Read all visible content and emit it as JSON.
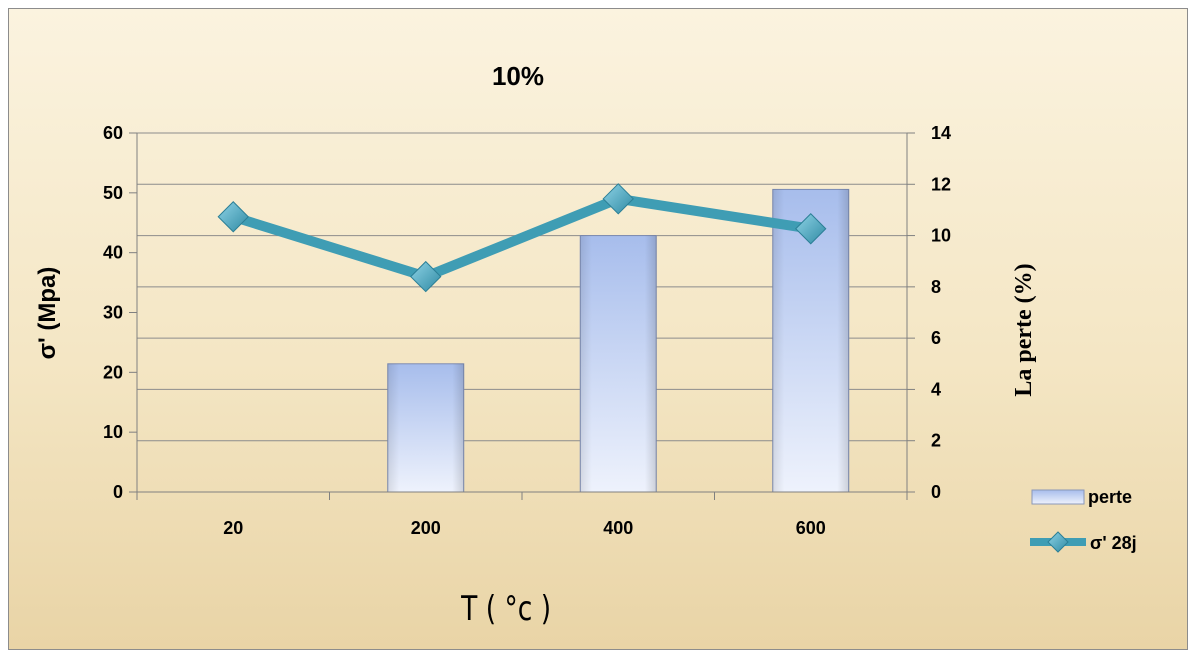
{
  "chart_data": {
    "type": "bar+line",
    "title": "10%",
    "xlabel": "T ( °c )",
    "ylabel": "σ' (Mpa)",
    "y2label": "La perte  (%)",
    "categories": [
      "20",
      "200",
      "400",
      "600"
    ],
    "ylim": [
      0,
      60
    ],
    "yticks": [
      "0",
      "10",
      "20",
      "30",
      "40",
      "50",
      "60"
    ],
    "y2lim": [
      0,
      14
    ],
    "y2ticks": [
      "0",
      "2",
      "4",
      "6",
      "8",
      "10",
      "12",
      "14"
    ],
    "grid": true,
    "legend_position": "right",
    "series": [
      {
        "name": "perte",
        "type": "bar",
        "axis": "right",
        "values": [
          0,
          5,
          10,
          11.8
        ],
        "color": "#aec3ee"
      },
      {
        "name": "σ' 28j",
        "type": "line",
        "axis": "left",
        "values": [
          46,
          36,
          49,
          44
        ],
        "color": "#3f9db4"
      }
    ]
  }
}
